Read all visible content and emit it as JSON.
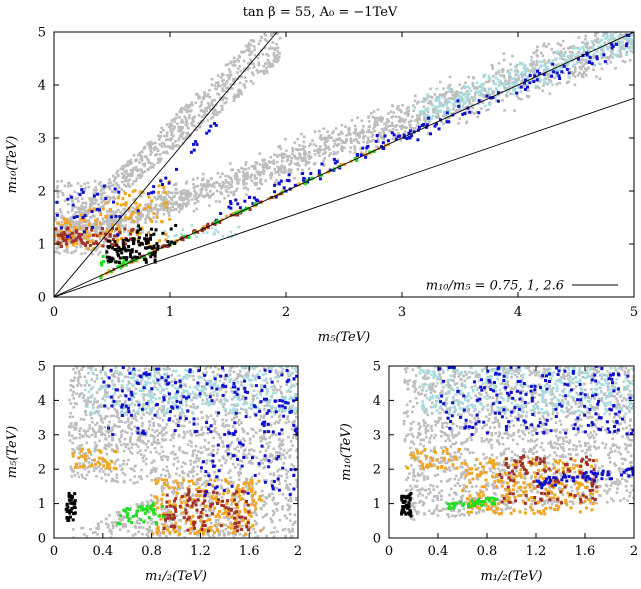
{
  "figure": {
    "title": "tan β = 55, A₀ = −1TeV"
  },
  "colors": {
    "gray": "#bdbdbd",
    "cyan": "#a6dde0",
    "orange": "#f2a520",
    "brown": "#a0302a",
    "blue": "#1010d0",
    "green": "#22dd22",
    "black": "#000000"
  },
  "chart_data": [
    {
      "id": "top",
      "type": "scatter",
      "xlabel": "m₅(TeV)",
      "ylabel": "m₁₀(TeV)",
      "xlim": [
        0,
        5
      ],
      "ylim": [
        0,
        5
      ],
      "xticks": [
        "0",
        "1",
        "2",
        "3",
        "4",
        "5"
      ],
      "yticks": [
        "0",
        "1",
        "2",
        "3",
        "4",
        "5"
      ],
      "legend": {
        "label": "m₁₀/m₅ = 0.75, 1, 2.6",
        "placement": "bottom-right"
      },
      "reference_lines": [
        {
          "slope": 0.75
        },
        {
          "slope": 1
        },
        {
          "slope": 2.6
        }
      ],
      "series": [
        {
          "color": "gray"
        },
        {
          "color": "cyan"
        },
        {
          "color": "orange"
        },
        {
          "color": "brown"
        },
        {
          "color": "blue"
        },
        {
          "color": "green"
        },
        {
          "color": "black"
        }
      ]
    },
    {
      "id": "bottom-left",
      "type": "scatter",
      "xlabel": "m₁/₂(TeV)",
      "ylabel": "m₅(TeV)",
      "xlim": [
        0,
        2
      ],
      "ylim": [
        0,
        5
      ],
      "xticks": [
        "0",
        "0.4",
        "0.8",
        "1.2",
        "1.6",
        "2"
      ],
      "yticks": [
        "0",
        "1",
        "2",
        "3",
        "4",
        "5"
      ],
      "series": [
        {
          "color": "gray"
        },
        {
          "color": "cyan"
        },
        {
          "color": "orange"
        },
        {
          "color": "brown"
        },
        {
          "color": "blue"
        },
        {
          "color": "green"
        },
        {
          "color": "black"
        }
      ]
    },
    {
      "id": "bottom-right",
      "type": "scatter",
      "xlabel": "m₁/₂(TeV)",
      "ylabel": "m₁₀(TeV)",
      "xlim": [
        0,
        2
      ],
      "ylim": [
        0,
        5
      ],
      "xticks": [
        "0",
        "0.4",
        "0.8",
        "1.2",
        "1.6",
        "2"
      ],
      "yticks": [
        "0",
        "1",
        "2",
        "3",
        "4",
        "5"
      ],
      "series": [
        {
          "color": "gray"
        },
        {
          "color": "cyan"
        },
        {
          "color": "orange"
        },
        {
          "color": "brown"
        },
        {
          "color": "blue"
        },
        {
          "color": "green"
        },
        {
          "color": "black"
        }
      ]
    }
  ]
}
